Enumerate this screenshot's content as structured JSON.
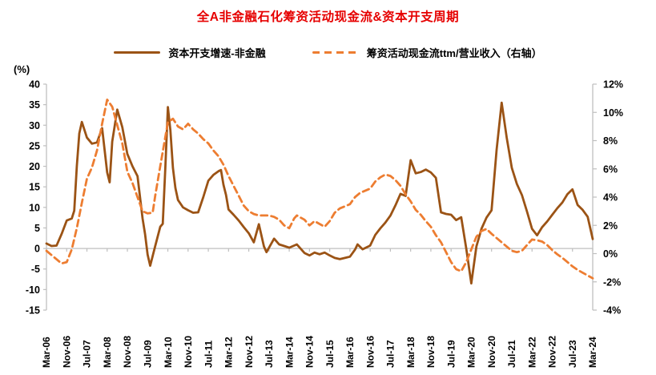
{
  "title": {
    "text": "全A非金融石化筹资活动现金流&资本开支周期",
    "color": "#E60000"
  },
  "legend": {
    "items": [
      {
        "label": "资本开支增速-非金融",
        "color": "#9B5315",
        "style": "solid"
      },
      {
        "label": "筹资活动现金流ttm/营业收入（右轴）",
        "color": "#ED7D31",
        "style": "dashed"
      }
    ]
  },
  "left_axis": {
    "unit_label": "(%)",
    "min": -15,
    "max": 40,
    "step": 5,
    "tick_labels": [
      "40",
      "35",
      "30",
      "25",
      "20",
      "15",
      "10",
      "5",
      "0",
      "-5",
      "-10",
      "-15"
    ]
  },
  "right_axis": {
    "min": -4,
    "max": 12,
    "step": 2,
    "tick_labels": [
      "12%",
      "10%",
      "8%",
      "6%",
      "4%",
      "2%",
      "0%",
      "-2%",
      "-4%"
    ]
  },
  "x_axis": {
    "total_months": 216,
    "months_per_label": 8,
    "tick_labels": [
      "Mar-06",
      "Nov-06",
      "Jul-07",
      "Mar-08",
      "Nov-08",
      "Jul-09",
      "Mar-10",
      "Nov-10",
      "Jul-11",
      "Mar-12",
      "Nov-12",
      "Jul-13",
      "Mar-14",
      "Nov-14",
      "Jul-15",
      "Mar-16",
      "Nov-16",
      "Jul-17",
      "Mar-18",
      "Nov-18",
      "Jul-19",
      "Mar-20",
      "Nov-20",
      "Jul-21",
      "Mar-22",
      "Nov-22",
      "Jul-23",
      "Mar-24"
    ]
  },
  "chart_data": {
    "type": "line",
    "title": "全A非金融石化筹资活动现金流&资本开支周期",
    "x_unit": "months_since_Mar-2006",
    "axis_color": "#BFBFBF",
    "grid": "zero-line-only",
    "legend_position": "top",
    "series": [
      {
        "name": "资本开支增速-非金融",
        "axis": "left",
        "unit": "%",
        "color": "#9B5315",
        "dash": null,
        "points": [
          [
            0,
            1.2
          ],
          [
            2,
            0.6
          ],
          [
            4,
            0.7
          ],
          [
            6,
            3.5
          ],
          [
            8,
            6.8
          ],
          [
            10,
            7.3
          ],
          [
            11,
            9.2
          ],
          [
            12,
            20
          ],
          [
            13,
            28
          ],
          [
            14,
            30.8
          ],
          [
            16,
            27
          ],
          [
            18,
            25.5
          ],
          [
            20,
            25.8
          ],
          [
            22,
            29.3
          ],
          [
            24,
            18.5
          ],
          [
            25,
            16.1
          ],
          [
            26,
            26
          ],
          [
            28,
            33.8
          ],
          [
            30,
            29.5
          ],
          [
            32,
            23
          ],
          [
            34,
            20
          ],
          [
            36,
            17.6
          ],
          [
            38,
            7.3
          ],
          [
            39,
            3.5
          ],
          [
            40,
            -1.5
          ],
          [
            41,
            -4.2
          ],
          [
            43,
            0.6
          ],
          [
            45,
            5.3
          ],
          [
            46,
            6
          ],
          [
            47,
            19.6
          ],
          [
            48,
            34.4
          ],
          [
            49,
            28.8
          ],
          [
            50,
            19.6
          ],
          [
            51,
            14.7
          ],
          [
            52,
            11.8
          ],
          [
            54,
            10
          ],
          [
            56,
            9.3
          ],
          [
            58,
            8.7
          ],
          [
            60,
            8.8
          ],
          [
            62,
            12.5
          ],
          [
            64,
            16.5
          ],
          [
            66,
            17.9
          ],
          [
            68,
            18.8
          ],
          [
            69,
            19.1
          ],
          [
            70,
            15.5
          ],
          [
            71,
            13
          ],
          [
            72,
            9.5
          ],
          [
            74,
            8.2
          ],
          [
            76,
            6.8
          ],
          [
            78,
            5.2
          ],
          [
            80,
            3.7
          ],
          [
            82,
            1.5
          ],
          [
            84,
            5.9
          ],
          [
            86,
            0.5
          ],
          [
            87,
            -0.9
          ],
          [
            90,
            2.4
          ],
          [
            92,
            1
          ],
          [
            94,
            0.6
          ],
          [
            96,
            0.2
          ],
          [
            99,
            1
          ],
          [
            102,
            -1.1
          ],
          [
            104,
            -1.7
          ],
          [
            106,
            -1
          ],
          [
            108,
            -1.4
          ],
          [
            110,
            -1
          ],
          [
            112,
            -1.7
          ],
          [
            114,
            -2.3
          ],
          [
            116,
            -2.6
          ],
          [
            118,
            -2.3
          ],
          [
            120,
            -2
          ],
          [
            122,
            -0.3
          ],
          [
            123,
            1
          ],
          [
            125,
            -0.2
          ],
          [
            128,
            0.7
          ],
          [
            130,
            3.3
          ],
          [
            132,
            4.9
          ],
          [
            134,
            6.3
          ],
          [
            136,
            8
          ],
          [
            138,
            10.5
          ],
          [
            140,
            13.3
          ],
          [
            142,
            12.8
          ],
          [
            144,
            21.5
          ],
          [
            146,
            18.3
          ],
          [
            148,
            18.6
          ],
          [
            150,
            19.2
          ],
          [
            152,
            18.5
          ],
          [
            154,
            17.2
          ],
          [
            156,
            8.8
          ],
          [
            158,
            8.4
          ],
          [
            160,
            8.2
          ],
          [
            162,
            6.9
          ],
          [
            164,
            7.6
          ],
          [
            166,
            0
          ],
          [
            168,
            -8.5
          ],
          [
            170,
            0.5
          ],
          [
            172,
            4.8
          ],
          [
            174,
            7.5
          ],
          [
            176,
            9.3
          ],
          [
            178,
            24
          ],
          [
            180,
            35.5
          ],
          [
            182,
            27
          ],
          [
            184,
            19.6
          ],
          [
            186,
            15.7
          ],
          [
            188,
            13
          ],
          [
            190,
            9
          ],
          [
            192,
            4.8
          ],
          [
            194,
            3.2
          ],
          [
            196,
            5.2
          ],
          [
            198,
            6.6
          ],
          [
            200,
            8.2
          ],
          [
            202,
            9.8
          ],
          [
            204,
            11.2
          ],
          [
            206,
            13.2
          ],
          [
            208,
            14.4
          ],
          [
            210,
            10.6
          ],
          [
            212,
            9.4
          ],
          [
            214,
            7.7
          ],
          [
            216,
            2.3
          ]
        ]
      },
      {
        "name": "筹资活动现金流ttm/营业收入（右轴）",
        "axis": "right",
        "unit": "%",
        "color": "#ED7D31",
        "dash": [
          8,
          5
        ],
        "points": [
          [
            0,
            0.2
          ],
          [
            2,
            -0.1
          ],
          [
            4,
            -0.4
          ],
          [
            6,
            -0.7
          ],
          [
            8,
            -0.6
          ],
          [
            10,
            0.3
          ],
          [
            12,
            1.8
          ],
          [
            14,
            3.6
          ],
          [
            16,
            5.3
          ],
          [
            18,
            6.1
          ],
          [
            20,
            7.3
          ],
          [
            22,
            9.2
          ],
          [
            24,
            10.9
          ],
          [
            26,
            10.4
          ],
          [
            28,
            9.1
          ],
          [
            30,
            7.8
          ],
          [
            32,
            5.8
          ],
          [
            34,
            5
          ],
          [
            36,
            4
          ],
          [
            38,
            3
          ],
          [
            40,
            2.85
          ],
          [
            42,
            2.9
          ],
          [
            43,
            4.1
          ],
          [
            45,
            6.2
          ],
          [
            48,
            9.3
          ],
          [
            50,
            9.55
          ],
          [
            52,
            9
          ],
          [
            54,
            8.8
          ],
          [
            56,
            9.2
          ],
          [
            58,
            8.8
          ],
          [
            60,
            8.5
          ],
          [
            62,
            8.1
          ],
          [
            64,
            7.8
          ],
          [
            66,
            7.3
          ],
          [
            68,
            6.9
          ],
          [
            70,
            6.3
          ],
          [
            72,
            5.5
          ],
          [
            74,
            4.8
          ],
          [
            76,
            4.1
          ],
          [
            78,
            3.4
          ],
          [
            80,
            3
          ],
          [
            82,
            2.8
          ],
          [
            84,
            2.7
          ],
          [
            88,
            2.7
          ],
          [
            90,
            2.6
          ],
          [
            92,
            2.4
          ],
          [
            94,
            2
          ],
          [
            96,
            1.8
          ],
          [
            98,
            2.5
          ],
          [
            99,
            2.7
          ],
          [
            102,
            2.4
          ],
          [
            104,
            2
          ],
          [
            106,
            2.3
          ],
          [
            108,
            2.1
          ],
          [
            110,
            1.9
          ],
          [
            112,
            2.3
          ],
          [
            114,
            2.9
          ],
          [
            116,
            3.2
          ],
          [
            118,
            3.35
          ],
          [
            120,
            3.5
          ],
          [
            122,
            4
          ],
          [
            124,
            4.3
          ],
          [
            126,
            4.45
          ],
          [
            128,
            4.6
          ],
          [
            130,
            5.1
          ],
          [
            132,
            5.4
          ],
          [
            134,
            5.6
          ],
          [
            136,
            5.5
          ],
          [
            138,
            5.2
          ],
          [
            140,
            4.8
          ],
          [
            142,
            4.2
          ],
          [
            144,
            3.7
          ],
          [
            146,
            3.1
          ],
          [
            148,
            2.75
          ],
          [
            150,
            2.3
          ],
          [
            152,
            1.9
          ],
          [
            154,
            1.3
          ],
          [
            156,
            0.8
          ],
          [
            158,
            0.1
          ],
          [
            160,
            -0.6
          ],
          [
            162,
            -1.1
          ],
          [
            164,
            -1.25
          ],
          [
            166,
            -0.6
          ],
          [
            168,
            0.3
          ],
          [
            170,
            1.2
          ],
          [
            172,
            1.6
          ],
          [
            174,
            1.75
          ],
          [
            176,
            1.4
          ],
          [
            178,
            1.1
          ],
          [
            180,
            0.8
          ],
          [
            182,
            0.5
          ],
          [
            184,
            0.2
          ],
          [
            186,
            0.1
          ],
          [
            188,
            0.2
          ],
          [
            190,
            0.6
          ],
          [
            192,
            1
          ],
          [
            194,
            0.95
          ],
          [
            196,
            0.85
          ],
          [
            198,
            0.6
          ],
          [
            200,
            0.25
          ],
          [
            202,
            -0.05
          ],
          [
            204,
            -0.3
          ],
          [
            206,
            -0.6
          ],
          [
            208,
            -0.9
          ],
          [
            210,
            -1.15
          ],
          [
            212,
            -1.35
          ],
          [
            214,
            -1.55
          ],
          [
            216,
            -1.75
          ]
        ]
      }
    ]
  }
}
